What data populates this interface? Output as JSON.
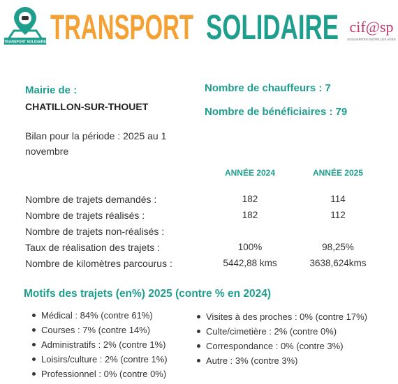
{
  "header": {
    "title_part1": "TRANSPORT",
    "title_part2": "SOLIDAIRE",
    "logo_left_text": "TRANSPORT SOLIDAIRE",
    "logo_right": "cif@sp",
    "logo_right_tagline": "SOLIDARITES ENTRE LES AGES"
  },
  "info": {
    "mairie_label": "Mairie de :",
    "commune": "CHATILLON-SUR-THOUET",
    "period": "Bilan pour la période : 2025 au 1 novembre",
    "chauffeurs": "Nombre de chauffeurs : 7",
    "beneficiaires": "Nombre de bénéficiaires : 79"
  },
  "table": {
    "headers": [
      "ANNÉE 2024",
      "ANNÉE 2025"
    ],
    "rows": [
      {
        "label": "Nombre de trajets demandés :",
        "y2024": "182",
        "y2025": "114"
      },
      {
        "label": "Nombre de trajets réalisés :",
        "y2024": "182",
        "y2025": "112"
      },
      {
        "label": "Nombre de trajets non-réalisés :"
      },
      {
        "label": "Taux de réalisation des trajets :",
        "y2024": "100%",
        "y2025": "98,25%"
      },
      {
        "label": "Nombre de kilomètres parcourus :",
        "y2024": "5442,88 kms",
        "y2025": "3638,624kms"
      }
    ]
  },
  "motifs": {
    "title": "Motifs des trajets (en%) 2025 (contre % en 2024)",
    "left": [
      "Médical : 84% (contre 61%)",
      "Courses :  7% (contre 14%)",
      "Administratifs :  2% (contre 1%)",
      "Loisirs/culture :  2% (contre 1%)",
      "Professionnel : 0% (contre 0%)"
    ],
    "right": [
      "Visites à des proches : 0% (contre 17%)",
      "Culte/cimetière : 2% (contre 0%)",
      "Correspondance : 0% (contre 3%)",
      "Autre : 3% (contre 3%)"
    ]
  }
}
